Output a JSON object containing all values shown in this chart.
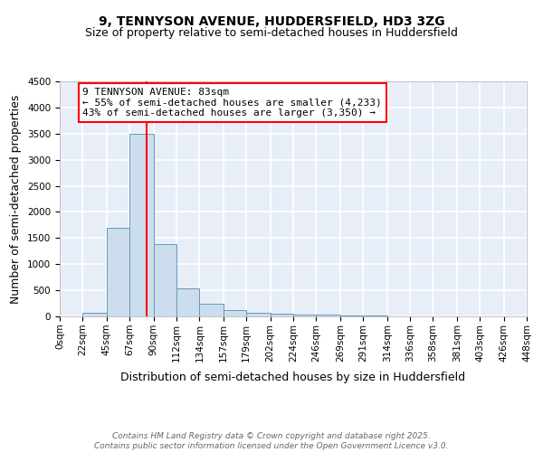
{
  "title1": "9, TENNYSON AVENUE, HUDDERSFIELD, HD3 3ZG",
  "title2": "Size of property relative to semi-detached houses in Huddersfield",
  "xlabel": "Distribution of semi-detached houses by size in Huddersfield",
  "ylabel": "Number of semi-detached properties",
  "bin_edges": [
    0,
    22,
    45,
    67,
    90,
    112,
    134,
    157,
    179,
    202,
    224,
    246,
    269,
    291,
    314,
    336,
    358,
    381,
    403,
    426,
    448
  ],
  "bar_heights": [
    0,
    75,
    1700,
    3500,
    1380,
    530,
    240,
    120,
    75,
    50,
    40,
    30,
    20,
    10,
    5,
    5,
    2,
    1,
    0,
    0
  ],
  "bar_color": "#ccdded",
  "bar_edgecolor": "#6699bb",
  "vline_x": 83,
  "vline_color": "red",
  "annotation_text": "9 TENNYSON AVENUE: 83sqm\n← 55% of semi-detached houses are smaller (4,233)\n43% of semi-detached houses are larger (3,350) →",
  "annotation_box_color": "white",
  "annotation_box_edgecolor": "red",
  "ylim": [
    0,
    4500
  ],
  "yticks": [
    0,
    500,
    1000,
    1500,
    2000,
    2500,
    3000,
    3500,
    4000,
    4500
  ],
  "background_color": "#e8eef8",
  "grid_color": "white",
  "footer1": "Contains HM Land Registry data © Crown copyright and database right 2025.",
  "footer2": "Contains public sector information licensed under the Open Government Licence v3.0.",
  "title_fontsize": 10,
  "subtitle_fontsize": 9,
  "axis_label_fontsize": 9,
  "tick_fontsize": 7.5,
  "annotation_fontsize": 8,
  "footer_fontsize": 6.5
}
